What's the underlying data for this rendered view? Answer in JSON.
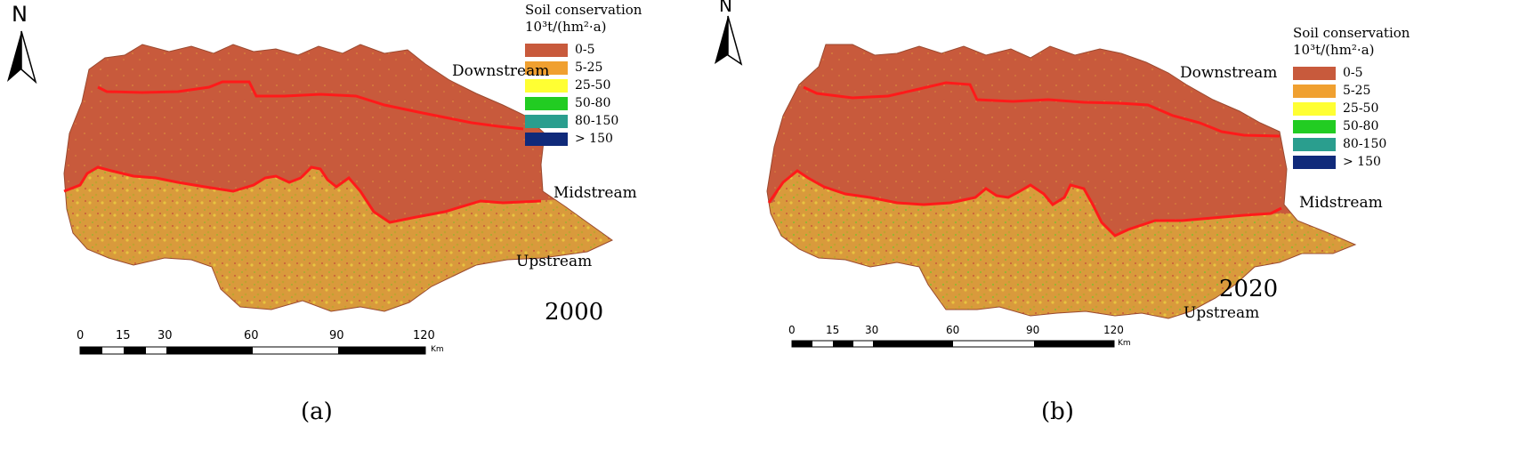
{
  "panels": [
    {
      "caption": "(a)",
      "year": "2000",
      "north": "N",
      "legend": {
        "title_line1": "Soil conservation",
        "title_line2": "10³t/(hm²·a)",
        "items": [
          {
            "label": "0-5",
            "color": "#C85A3C"
          },
          {
            "label": "5-25",
            "color": "#F0A030"
          },
          {
            "label": "25-50",
            "color": "#FFFF33"
          },
          {
            "label": "50-80",
            "color": "#22CC22"
          },
          {
            "label": "80-150",
            "color": "#2A9E8E"
          },
          {
            "label": "> 150",
            "color": "#102A7A"
          }
        ]
      },
      "regions": {
        "downstream": "Downstream",
        "midstream": "Midstream",
        "upstream": "Upstream"
      },
      "scale": {
        "ticks": [
          "0",
          "15",
          "30",
          "60",
          "90",
          "120"
        ],
        "unit": "Km"
      }
    },
    {
      "caption": "(b)",
      "year": "2020",
      "north": "N",
      "legend": {
        "title_line1": "Soil conservation",
        "title_line2": "10³t/(hm²·a)",
        "items": [
          {
            "label": "0-5",
            "color": "#C85A3C"
          },
          {
            "label": "5-25",
            "color": "#F0A030"
          },
          {
            "label": "25-50",
            "color": "#FFFF33"
          },
          {
            "label": "50-80",
            "color": "#22CC22"
          },
          {
            "label": "80-150",
            "color": "#2A9E8E"
          },
          {
            "label": "> 150",
            "color": "#102A7A"
          }
        ]
      },
      "regions": {
        "downstream": "Downstream",
        "midstream": "Midstream",
        "upstream": "Upstream"
      },
      "scale": {
        "ticks": [
          "0",
          "15",
          "30",
          "60",
          "90",
          "120"
        ],
        "unit": "Km"
      }
    }
  ],
  "colors": {
    "boundary_line": "#FF1A1A",
    "downstream_fill": "#C85A3C",
    "upstream_fill": "#D89A3A"
  }
}
